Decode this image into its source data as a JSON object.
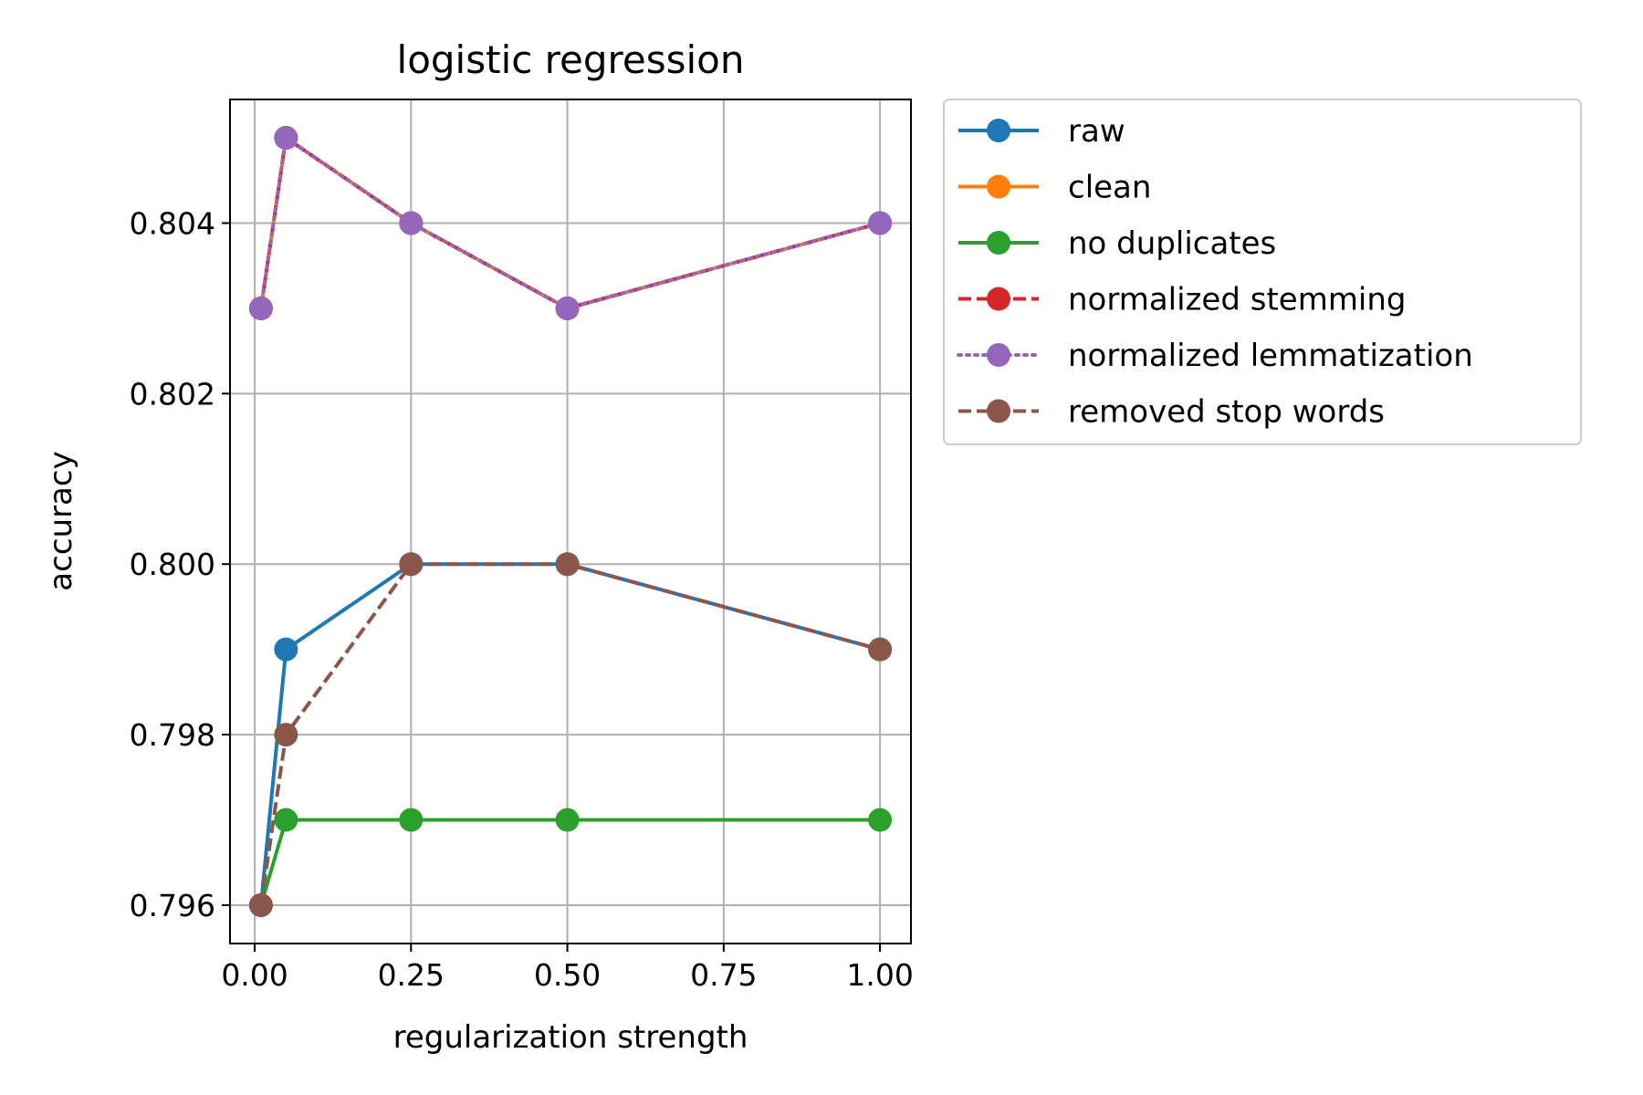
{
  "chart_data": {
    "type": "line",
    "title": "logistic regression",
    "xlabel": "regularization strength",
    "ylabel": "accuracy",
    "xlim": [
      -0.0395,
      1.0495
    ],
    "ylim": [
      0.79555,
      0.80545
    ],
    "xticks": [
      0.0,
      0.25,
      0.5,
      0.75,
      1.0
    ],
    "xtick_labels": [
      "0.00",
      "0.25",
      "0.50",
      "0.75",
      "1.00"
    ],
    "yticks": [
      0.796,
      0.798,
      0.8,
      0.802,
      0.804
    ],
    "ytick_labels": [
      "0.796",
      "0.798",
      "0.800",
      "0.802",
      "0.804"
    ],
    "grid": true,
    "legend_position": "outside-top-right",
    "x": [
      0.01,
      0.05,
      0.25,
      0.5,
      1.0
    ],
    "series": [
      {
        "name": "raw",
        "values": [
          0.796,
          0.799,
          0.8,
          0.8,
          0.799
        ],
        "color": "#1f77b4",
        "linestyle": "solid"
      },
      {
        "name": "clean",
        "values": [
          0.803,
          0.805,
          0.804,
          0.803,
          0.804
        ],
        "color": "#ff7f0e",
        "linestyle": "solid"
      },
      {
        "name": "no duplicates",
        "values": [
          0.796,
          0.797,
          0.797,
          0.797,
          0.797
        ],
        "color": "#2ca02c",
        "linestyle": "solid"
      },
      {
        "name": "normalized stemming",
        "values": [
          0.803,
          0.805,
          0.804,
          0.803,
          0.804
        ],
        "color": "#d62728",
        "linestyle": "dashed"
      },
      {
        "name": "normalized lemmatization",
        "values": [
          0.803,
          0.805,
          0.804,
          0.803,
          0.804
        ],
        "color": "#9467bd",
        "linestyle": "dotted"
      },
      {
        "name": "removed stop words",
        "values": [
          0.796,
          0.798,
          0.8,
          0.8,
          0.799
        ],
        "color": "#8c564b",
        "linestyle": "dashed"
      }
    ]
  }
}
